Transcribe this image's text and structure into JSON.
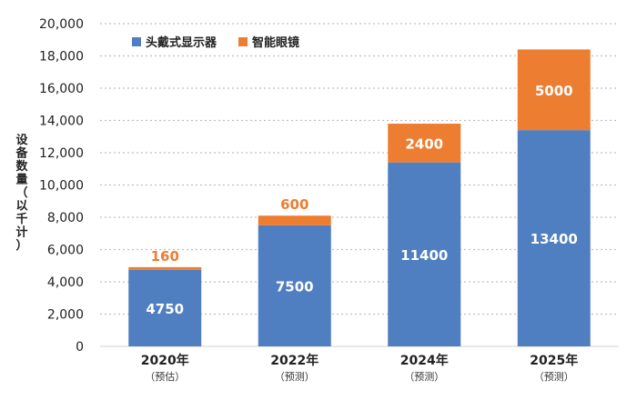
{
  "chart_data": {
    "type": "bar",
    "stacked": true,
    "categories": [
      "2020年",
      "2022年",
      "2024年",
      "2025年"
    ],
    "category_notes": [
      "（预估）",
      "（预测）",
      "（预测）",
      "（预测）"
    ],
    "series": [
      {
        "name": "头戴式显示器",
        "color": "#4F7FC1",
        "values": [
          4750,
          7500,
          11400,
          13400
        ]
      },
      {
        "name": "智能眼镜",
        "color": "#ED7D31",
        "values": [
          160,
          600,
          2400,
          5000
        ]
      }
    ],
    "ylabel": "设备数量（以千计）",
    "ylim": [
      0,
      20000
    ],
    "yticks": [
      "0",
      "2,000",
      "4,000",
      "6,000",
      "8,000",
      "10,000",
      "12,000",
      "14,000",
      "16,000",
      "18,000",
      "20,000"
    ],
    "grid": true,
    "legend_position": "top-left"
  }
}
